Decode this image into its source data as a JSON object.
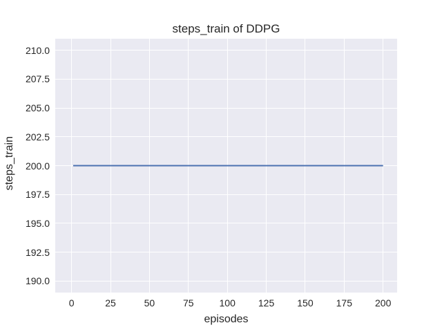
{
  "chart_data": {
    "type": "line",
    "title": "steps_train of DDPG",
    "xlabel": "episodes",
    "ylabel": "steps_train",
    "xlim": [
      -10.5,
      209
    ],
    "ylim": [
      189,
      211
    ],
    "xticks": [
      0,
      25,
      50,
      75,
      100,
      125,
      150,
      175,
      200
    ],
    "xtick_labels": [
      "0",
      "25",
      "50",
      "75",
      "100",
      "125",
      "150",
      "175",
      "200"
    ],
    "yticks": [
      190.0,
      192.5,
      195.0,
      197.5,
      200.0,
      202.5,
      205.0,
      207.5,
      210.0
    ],
    "ytick_labels": [
      "190.0",
      "192.5",
      "195.0",
      "197.5",
      "200.0",
      "202.5",
      "205.0",
      "207.5",
      "210.0"
    ],
    "grid": true,
    "legend": false,
    "series": [
      {
        "name": "steps_train",
        "color": "#4C72B0",
        "x": [
          1,
          200
        ],
        "y": [
          200,
          200
        ],
        "constant_value": 200,
        "line_width": 2
      }
    ],
    "colors": {
      "figure_bg": "#FFFFFF",
      "plot_bg": "#EAEAF2",
      "grid": "#FFFFFF",
      "text": "#262626",
      "line": "#4C72B0"
    }
  }
}
